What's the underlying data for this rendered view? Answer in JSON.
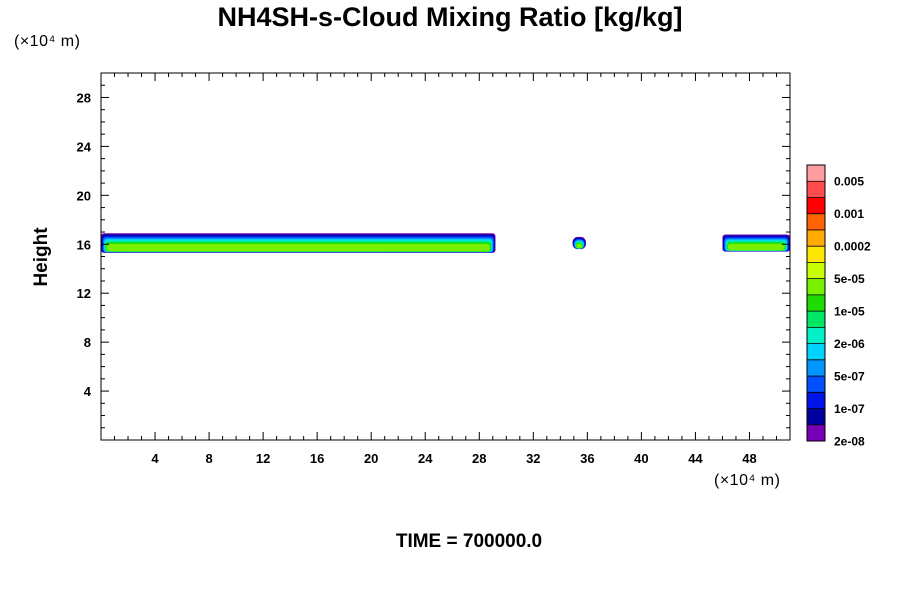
{
  "chart_data": {
    "type": "heatmap",
    "title": "NH4SH-s-Cloud Mixing Ratio [kg/kg]",
    "ylabel": "Height",
    "y_unit": "(×10⁴ m)",
    "x_unit": "(×10⁴ m)",
    "time_label": "TIME = 700000.0",
    "xlim": [
      0,
      51
    ],
    "ylim": [
      0,
      30
    ],
    "x_ticks": [
      4,
      8,
      12,
      16,
      20,
      24,
      28,
      32,
      36,
      40,
      44,
      48
    ],
    "y_ticks": [
      4,
      8,
      12,
      16,
      20,
      24,
      28
    ],
    "colorbar": {
      "labels": [
        "0.005",
        "0.001",
        "0.0002",
        "5e-05",
        "1e-05",
        "2e-06",
        "5e-07",
        "1e-07",
        "2e-08"
      ],
      "colors": [
        "#ff9e9e",
        "#ff4d4d",
        "#ff0000",
        "#ff6400",
        "#ffaa00",
        "#ffe600",
        "#c8ff00",
        "#78f000",
        "#1edc00",
        "#00e664",
        "#00f0c8",
        "#00d2ff",
        "#0096ff",
        "#0050ff",
        "#0014e6",
        "#0000a0",
        "#7800b4"
      ]
    },
    "cloud_layers": [
      {
        "x": [
          0,
          29.2
        ],
        "y": [
          15.3,
          16.9
        ]
      },
      {
        "x": [
          34.9,
          35.9
        ],
        "y": [
          15.6,
          16.6
        ]
      },
      {
        "x": [
          46.0,
          51.0
        ],
        "y": [
          15.4,
          16.8
        ]
      }
    ],
    "band_colors": [
      "#7800b4",
      "#0000a0",
      "#0014e6",
      "#0050ff",
      "#0096ff",
      "#00d2ff",
      "#00f0c8",
      "#00e664",
      "#1edc00",
      "#78f000"
    ]
  }
}
